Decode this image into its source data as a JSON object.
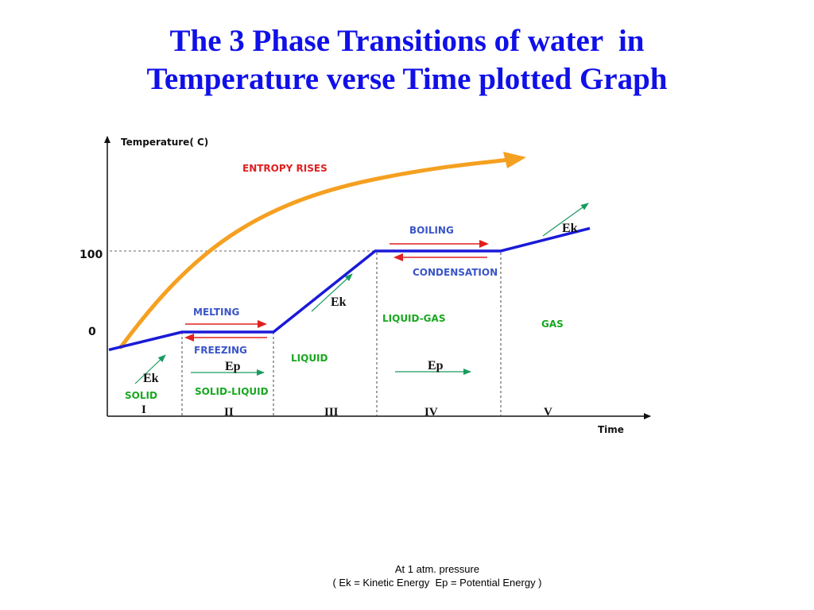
{
  "title_line1": "The 3 Phase Transitions of water  in",
  "title_line2": "Temperature verse Time plotted Graph",
  "footnote_line1": "At 1 atm. pressure",
  "footnote_line2": "( Ek = Kinetic Energy  Ep = Potential Energy )",
  "chart_data": {
    "type": "line",
    "ylabel": "Temperature( C)",
    "xlabel": "Time",
    "yticks": [
      "100",
      "0"
    ],
    "regions": [
      "I",
      "II",
      "III",
      "IV",
      "V"
    ],
    "series": [
      {
        "x": [
          0,
          1,
          2,
          3,
          4,
          5
        ],
        "y": [
          -22,
          0,
          0,
          100,
          100,
          128
        ]
      }
    ],
    "entropy_label": "ENTROPY RISES",
    "labels": {
      "melting": "MELTING",
      "freezing": "FREEZING",
      "boiling": "BOILING",
      "condensation": "CONDENSATION",
      "solid": "SOLID",
      "solid_liquid": "SOLID-LIQUID",
      "liquid": "LIQUID",
      "liquid_gas": "LIQUID-GAS",
      "gas": "GAS",
      "ek": "Ek",
      "ep": "Ep"
    },
    "colors": {
      "curve": "#1a1ad8",
      "entropy": "#f5a020",
      "red": "#e02020",
      "green": "#1a9a60",
      "phase_text": "#18a820",
      "transition_text": "#3a55c8"
    }
  }
}
